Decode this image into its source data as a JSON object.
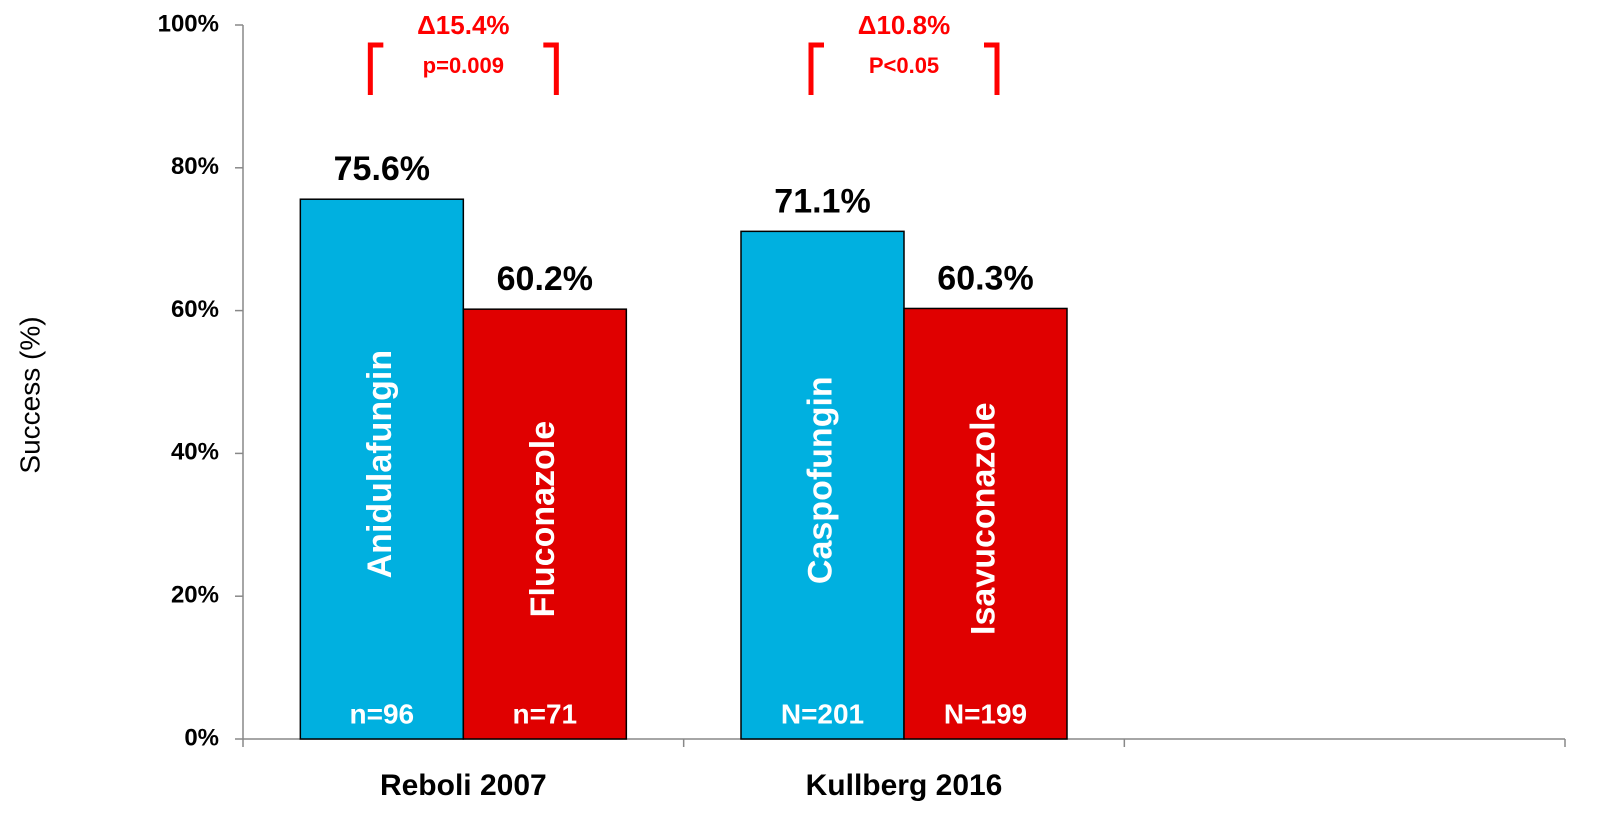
{
  "chart_data": {
    "type": "bar",
    "y_label": "Success (%)",
    "categories": [
      "Reboli 2007",
      "Kullberg 2016",
      null
    ],
    "series": [
      {
        "color": "#00b0e0",
        "values": [
          75.6,
          71.1,
          null
        ],
        "value_labels": [
          "75.6%",
          "71.1%",
          null
        ],
        "bar_labels": [
          "Anidulafungin",
          "Caspofungin",
          null
        ],
        "n_labels": [
          "n=96",
          "N=201",
          null
        ]
      },
      {
        "color": "#e00000",
        "values": [
          60.2,
          60.3,
          null
        ],
        "value_labels": [
          "60.2%",
          "60.3%",
          null
        ],
        "bar_labels": [
          "Fluconazole",
          "Isavuconazole",
          null
        ],
        "n_labels": [
          "n=71",
          "N=199",
          null
        ]
      }
    ],
    "comparisons": [
      {
        "delta": "Δ15.4%",
        "p": "p=0.009",
        "color": "#ff0000"
      },
      {
        "delta": "Δ10.8%",
        "p": "P<0.05",
        "color": "#ff0000"
      }
    ],
    "ylim": [
      0,
      100
    ],
    "yticks": [
      {
        "value": 0,
        "label": "0%"
      },
      {
        "value": 20,
        "label": "20%"
      },
      {
        "value": 40,
        "label": "40%"
      },
      {
        "value": 60,
        "label": "60%"
      },
      {
        "value": 80,
        "label": "80%"
      },
      {
        "value": 100,
        "label": "100%"
      }
    ],
    "grid": false
  }
}
